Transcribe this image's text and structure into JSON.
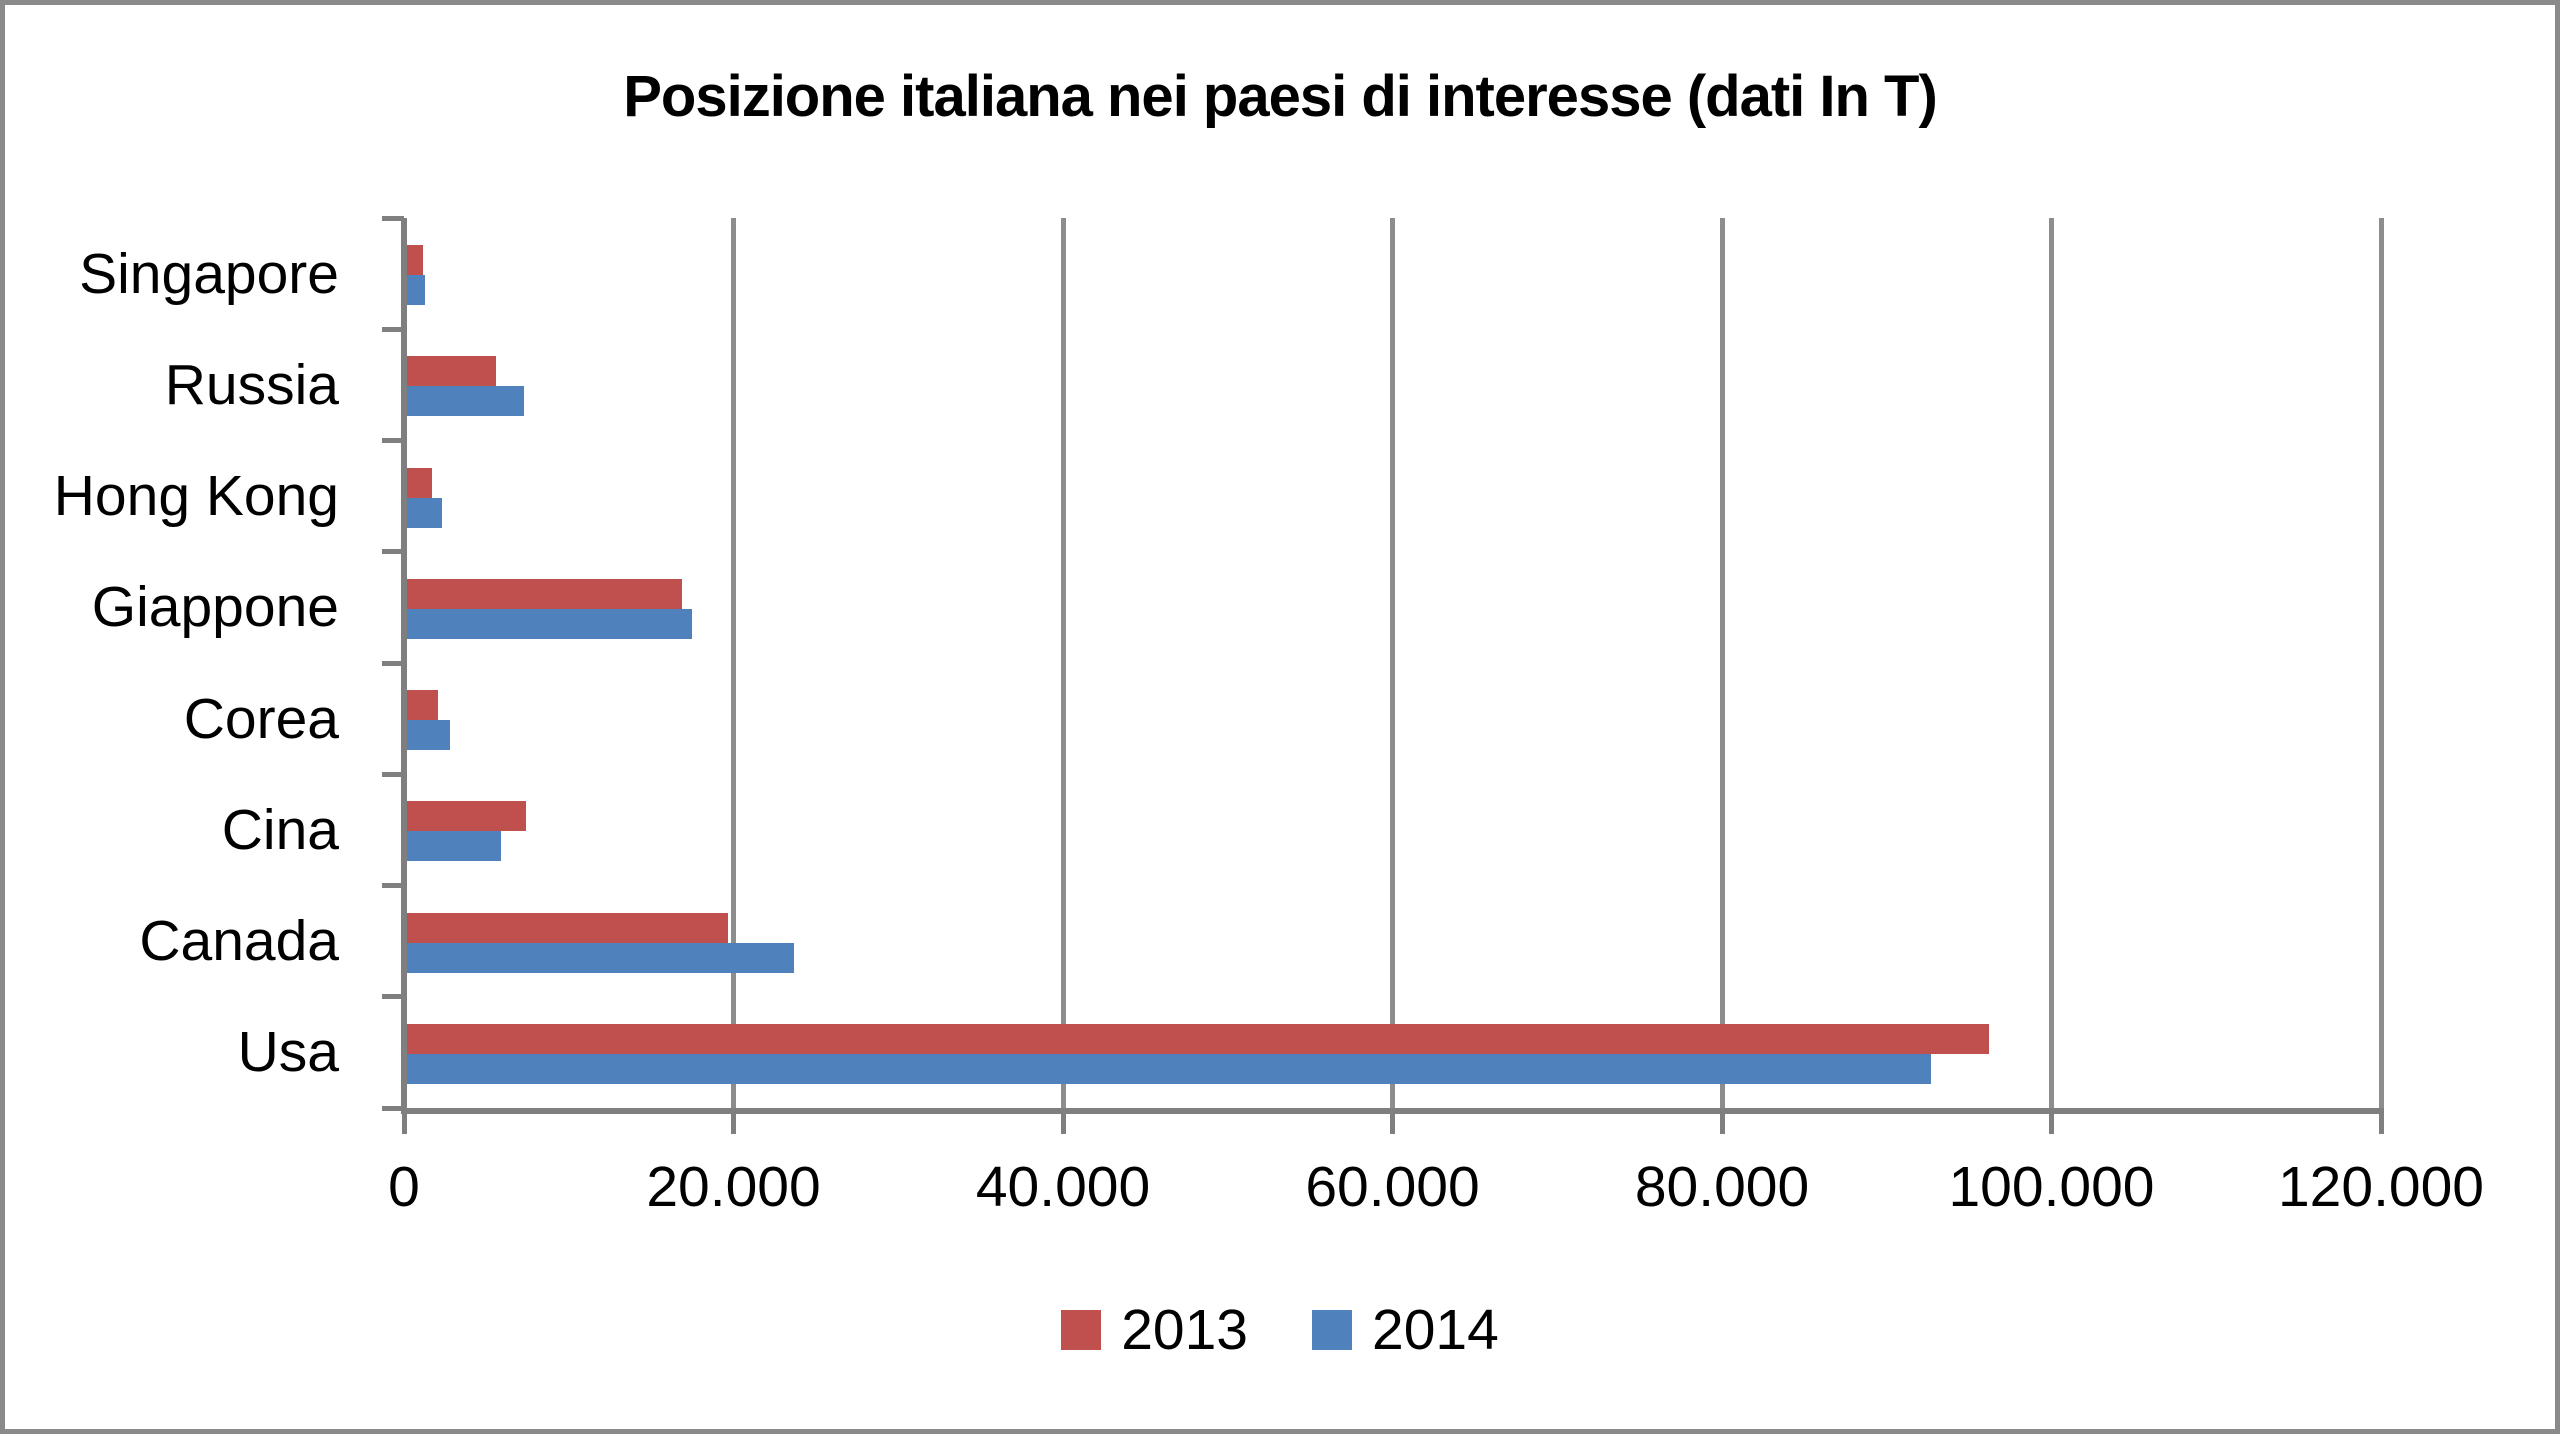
{
  "frame": {
    "border_color": "#8A8A8A",
    "background_color": "#FFFFFF"
  },
  "chart_data": {
    "type": "bar",
    "orientation": "horizontal",
    "title": "Posizione italiana nei paesi di interesse (dati In T)",
    "categories": [
      "Singapore",
      "Russia",
      "Hong Kong",
      "Giappone",
      "Corea",
      "Cina",
      "Canada",
      "Usa"
    ],
    "series": [
      {
        "name": "2013",
        "color": "#C0504D",
        "values": [
          1000,
          5400,
          1500,
          16700,
          1900,
          7200,
          19500,
          96000
        ]
      },
      {
        "name": "2014",
        "color": "#4F81BD",
        "values": [
          1100,
          7100,
          2100,
          17300,
          2600,
          5700,
          23500,
          92500
        ]
      }
    ],
    "x_axis": {
      "min": 0,
      "max": 120000,
      "tick_interval": 20000,
      "tick_labels": [
        "0",
        "20.000",
        "40.000",
        "60.000",
        "80.000",
        "100.000",
        "120.000"
      ]
    },
    "y_axis": {
      "label": ""
    },
    "grid": "vertical-only",
    "legend_position": "bottom",
    "axis_color": "#7F7F7F",
    "gridline_color": "#8D8D8D",
    "text_color": "#000000"
  }
}
